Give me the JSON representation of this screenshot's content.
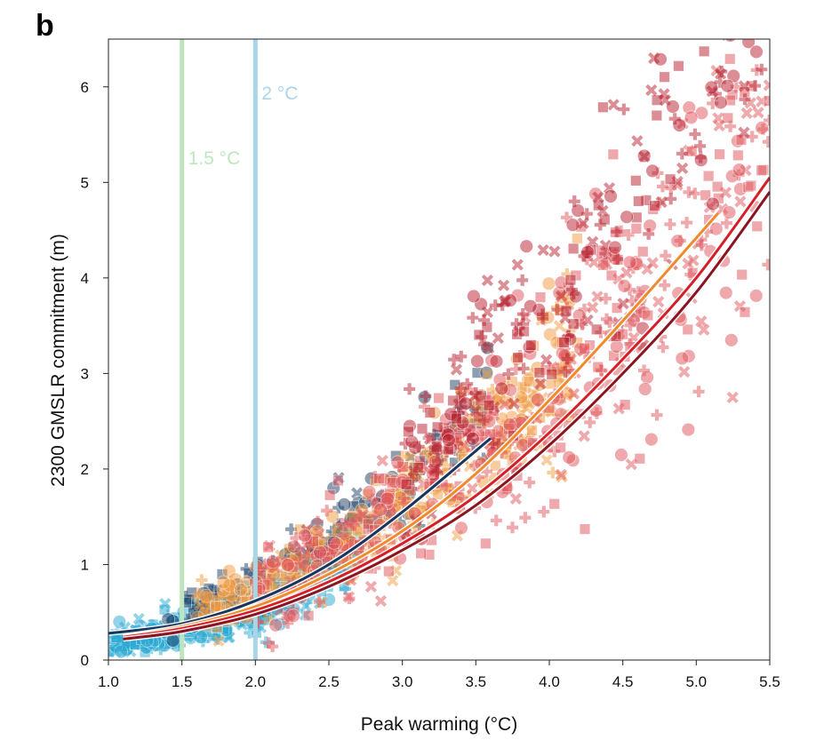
{
  "panel_label": "b",
  "chart_data": {
    "type": "scatter",
    "xlabel": "Peak warming (°C)",
    "ylabel": "2300 GMSLR commitment (m)",
    "xlim": [
      1.0,
      5.5
    ],
    "ylim": [
      0,
      6.5
    ],
    "x_ticks": [
      "1.0",
      "1.5",
      "2.0",
      "2.5",
      "3.0",
      "3.5",
      "4.0",
      "4.5",
      "5.0",
      "5.5"
    ],
    "y_ticks": [
      "0",
      "1",
      "2",
      "3",
      "4",
      "5",
      "6"
    ],
    "grid": false,
    "reference_lines": [
      {
        "x": 1.5,
        "label": "1.5 °C",
        "color": "#bfe5bf"
      },
      {
        "x": 2.0,
        "label": "2 °C",
        "color": "#a9d6e5"
      }
    ],
    "scatter_groups": [
      {
        "color": "#2aa9d3",
        "x_range": [
          1.0,
          2.7
        ],
        "center": [
          0.25,
          -0.05
        ],
        "spread": 0.22,
        "marker": "mixed",
        "count": 420
      },
      {
        "color": "#1f3f66",
        "x_range": [
          1.4,
          3.6
        ],
        "center": [
          0.42,
          0.05
        ],
        "spread": 0.28,
        "marker": "mixed",
        "count": 150
      },
      {
        "color": "#f29b42",
        "x_range": [
          1.6,
          4.2
        ],
        "center": [
          0.4,
          -0.05
        ],
        "spread": 0.3,
        "marker": "mixed",
        "count": 380
      },
      {
        "color": "#e0565b",
        "x_range": [
          2.0,
          5.5
        ],
        "center": [
          0.38,
          -0.1
        ],
        "spread": 0.4,
        "marker": "mixed",
        "count": 520
      },
      {
        "color": "#b81f2d",
        "x_range": [
          3.0,
          5.5
        ],
        "center": [
          0.38,
          0.2
        ],
        "spread": 0.42,
        "marker": "mixed",
        "count": 260
      }
    ],
    "series": [
      {
        "color": "#16365e",
        "x": [
          1.0,
          1.5,
          2.0,
          2.5,
          3.0,
          3.6
        ],
        "y": [
          0.28,
          0.38,
          0.62,
          1.0,
          1.55,
          2.32
        ]
      },
      {
        "color": "#f08a2a",
        "x": [
          1.1,
          1.5,
          2.0,
          2.5,
          3.0,
          3.5,
          4.0,
          4.5,
          5.15
        ],
        "y": [
          0.25,
          0.35,
          0.56,
          0.9,
          1.35,
          1.95,
          2.72,
          3.55,
          4.68
        ]
      },
      {
        "color": "#d41f26",
        "x": [
          1.1,
          1.5,
          2.0,
          2.5,
          3.0,
          3.5,
          4.0,
          4.5,
          5.0,
          5.5
        ],
        "y": [
          0.24,
          0.33,
          0.52,
          0.82,
          1.22,
          1.72,
          2.38,
          3.15,
          4.0,
          5.05
        ]
      },
      {
        "color": "#8a1520",
        "x": [
          1.1,
          1.5,
          2.0,
          2.5,
          3.0,
          3.5,
          4.0,
          4.5,
          5.0,
          5.5
        ],
        "y": [
          0.22,
          0.3,
          0.48,
          0.77,
          1.15,
          1.62,
          2.25,
          3.0,
          3.85,
          4.9
        ]
      }
    ]
  }
}
